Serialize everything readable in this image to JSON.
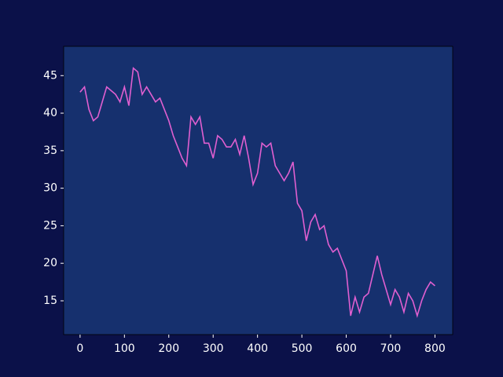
{
  "chart_data": {
    "type": "line",
    "x": [
      0,
      10,
      20,
      30,
      40,
      50,
      60,
      70,
      80,
      90,
      100,
      110,
      120,
      130,
      140,
      150,
      160,
      170,
      180,
      190,
      200,
      210,
      220,
      230,
      240,
      250,
      260,
      270,
      280,
      290,
      300,
      310,
      320,
      330,
      340,
      350,
      360,
      370,
      380,
      390,
      400,
      410,
      420,
      430,
      440,
      450,
      460,
      470,
      480,
      490,
      500,
      510,
      520,
      530,
      540,
      550,
      560,
      570,
      580,
      590,
      600,
      610,
      620,
      630,
      640,
      650,
      660,
      670,
      680,
      690,
      700,
      710,
      720,
      730,
      740,
      750,
      760,
      770,
      780,
      790,
      800
    ],
    "series": [
      {
        "color": "#e05fd0",
        "values": [
          42.8,
          43.5,
          40.5,
          39,
          39.5,
          41.5,
          43.5,
          43,
          42.5,
          41.5,
          43.5,
          41,
          46,
          45.5,
          42.5,
          43.5,
          42.5,
          41.5,
          42,
          40.5,
          39,
          37,
          35.5,
          34,
          33,
          39.5,
          38.5,
          39.5,
          36,
          36,
          34,
          37,
          36.5,
          35.5,
          35.5,
          36.5,
          34.5,
          37,
          34,
          30.5,
          32,
          36,
          35.5,
          36,
          33,
          32,
          31,
          32,
          33.5,
          28,
          27,
          23,
          25.5,
          26.5,
          24.5,
          25,
          22.5,
          21.5,
          22,
          20.5,
          19,
          13,
          15.5,
          13.5,
          15.5,
          16,
          18.5,
          21,
          18.5,
          16.5,
          14.5,
          16.5,
          15.5,
          13.5,
          16,
          15,
          13,
          15,
          16.5,
          17.5,
          17
        ]
      }
    ],
    "xlim": [
      -37,
      840
    ],
    "ylim": [
      10.5,
      48.9
    ],
    "xticks": [
      0,
      100,
      200,
      300,
      400,
      500,
      600,
      700,
      800
    ],
    "yticks": [
      15,
      20,
      25,
      30,
      35,
      40,
      45
    ]
  }
}
